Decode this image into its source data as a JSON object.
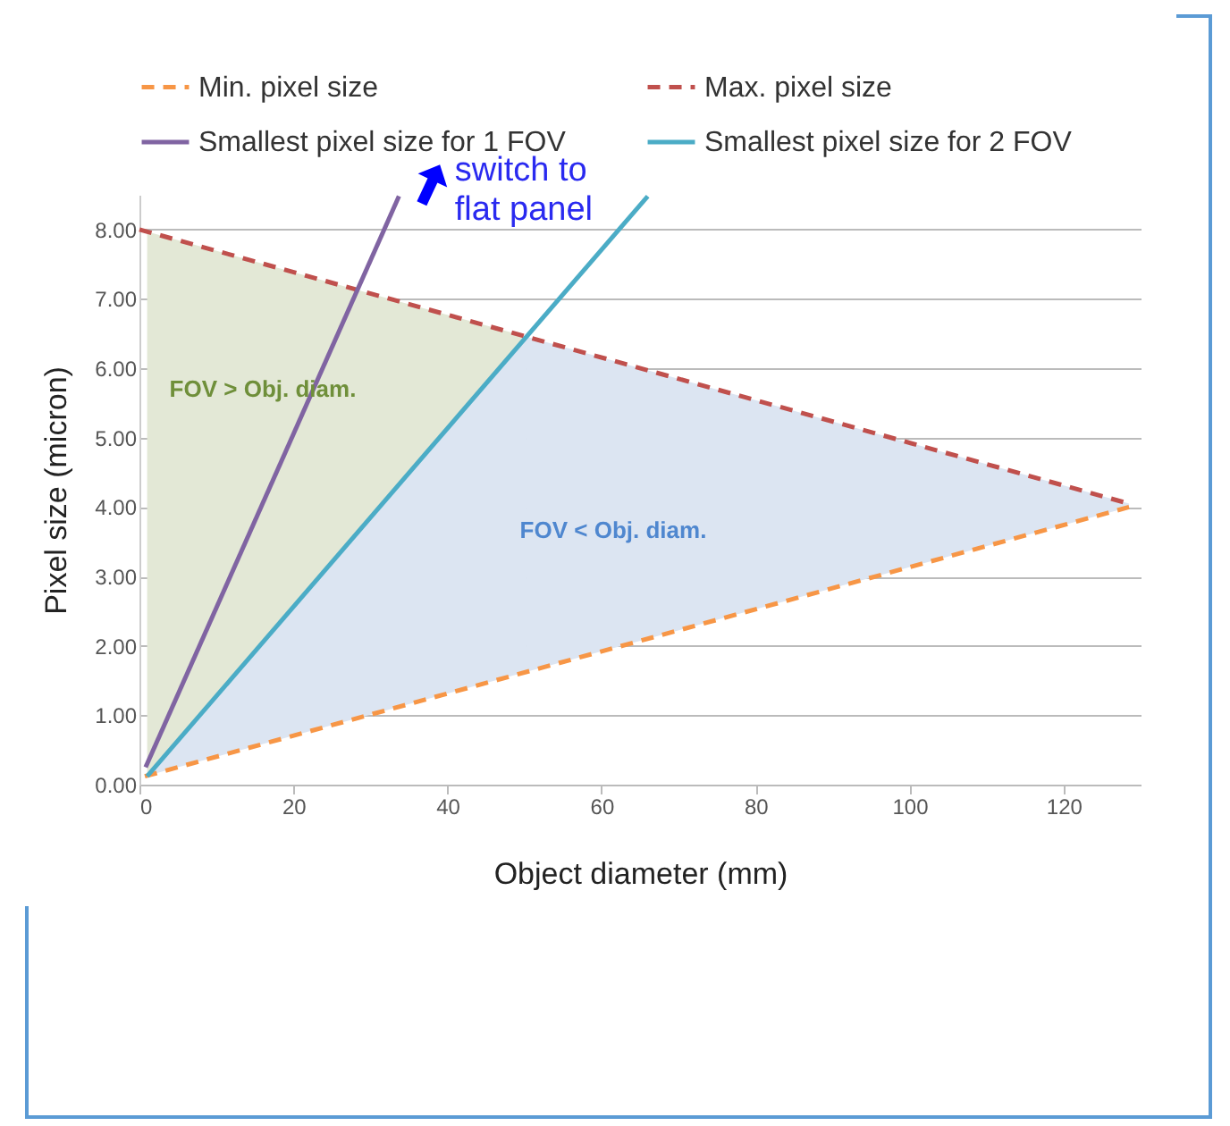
{
  "chart_data": {
    "type": "line",
    "xlabel": "Object diameter (mm)",
    "ylabel": "Pixel size (micron)",
    "xlim": [
      0,
      130
    ],
    "xticks": [
      0,
      20,
      40,
      60,
      80,
      100,
      120
    ],
    "ylim": [
      0,
      8.5
    ],
    "yticks": [
      {
        "value": 0,
        "label": "0.00"
      },
      {
        "value": 1,
        "label": "1.00"
      },
      {
        "value": 2,
        "label": "2.00"
      },
      {
        "value": 3,
        "label": "3.00"
      },
      {
        "value": 4,
        "label": "4.00"
      },
      {
        "value": 5,
        "label": "5.00"
      },
      {
        "value": 6,
        "label": "6.00"
      },
      {
        "value": 7,
        "label": "7.00"
      },
      {
        "value": 8,
        "label": "8.00"
      }
    ],
    "grid": "y",
    "legend": "top",
    "series": [
      {
        "name": "Min. pixel size",
        "color": "#f79646",
        "line_style": "dashed",
        "x": [
          0.7,
          128.5
        ],
        "values": [
          0.12,
          4.0
        ]
      },
      {
        "name": "Max. pixel size",
        "color": "#c0504d",
        "line_style": "dashed",
        "x": [
          0,
          128.5
        ],
        "values": [
          8.0,
          4.05
        ]
      },
      {
        "name": "Smallest pixel size for 1 FOV",
        "color": "#8064a2",
        "line_style": "solid",
        "x": [
          0.8,
          33.7
        ],
        "values": [
          0.25,
          8.48
        ]
      },
      {
        "name": "Smallest pixel size for 2 FOV",
        "color": "#4bacc6",
        "line_style": "solid",
        "x": [
          1,
          66
        ],
        "values": [
          0.12,
          8.48
        ]
      }
    ],
    "annotations": [
      "FOV > Obj. diam.",
      "FOV < Obj. diam.",
      "switch to\nflat panel"
    ]
  }
}
